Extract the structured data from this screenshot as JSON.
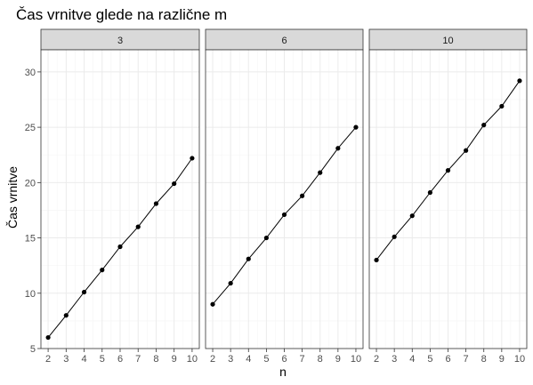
{
  "chart_data": {
    "type": "line",
    "title": "Čas vrnitve glede na različne m",
    "xlabel": "n",
    "ylabel": "Čas vrnitve",
    "x": [
      2,
      3,
      4,
      5,
      6,
      7,
      8,
      9,
      10
    ],
    "x_ticks": [
      "2",
      "3",
      "4",
      "5",
      "6",
      "7",
      "8",
      "9",
      "10"
    ],
    "ylim": [
      5,
      32
    ],
    "y_ticks": [
      5,
      10,
      15,
      20,
      25,
      30
    ],
    "grid": true,
    "facets": [
      {
        "label": "3",
        "values": [
          6.0,
          8.0,
          10.1,
          12.1,
          14.2,
          16.0,
          18.1,
          19.9,
          22.2
        ]
      },
      {
        "label": "6",
        "values": [
          9.0,
          10.9,
          13.1,
          15.0,
          17.1,
          18.8,
          20.9,
          23.1,
          25.0
        ]
      },
      {
        "label": "10",
        "values": [
          13.0,
          15.1,
          17.0,
          19.1,
          21.1,
          22.9,
          25.2,
          26.9,
          29.2
        ]
      }
    ],
    "colors": {
      "panel_border": "#333333",
      "strip_fill": "#d9d9d9",
      "grid_major": "#ebebeb",
      "grid_minor": "#f5f5f5",
      "line": "#000000",
      "point": "#000000"
    }
  }
}
